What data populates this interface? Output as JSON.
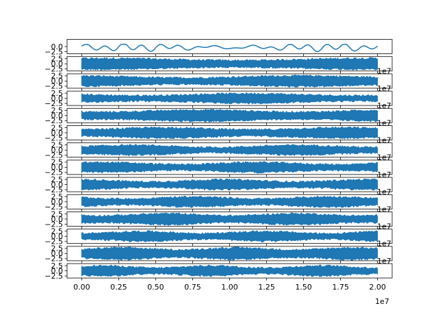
{
  "figure": {
    "line_color": "#1f77b4",
    "axis_color": "#000000",
    "background": "#ffffff"
  },
  "chart_data": {
    "type": "line",
    "layout": "stacked-subplots",
    "subplot_count": 14,
    "x_range": [
      0,
      20000000
    ],
    "x_tick_values": [
      0,
      2500000,
      5000000,
      7500000,
      10000000,
      12500000,
      15000000,
      17500000,
      20000000
    ],
    "x_tick_labels": [
      "0.00",
      "0.25",
      "0.50",
      "0.75",
      "1.00",
      "1.25",
      "1.50",
      "1.75",
      "2.00"
    ],
    "x_offset_label": "1e7",
    "y_tick_values": [
      2.5,
      0.0,
      -2.5
    ],
    "y_tick_labels": [
      "2.5",
      "0.0",
      "−2.5"
    ],
    "top_panel_y_tick_values": [
      0.0,
      -2.5
    ],
    "top_panel_y_tick_labels": [
      "0.0",
      "−2.5"
    ],
    "y_range": [
      -3.5,
      3.5
    ],
    "top_panel": {
      "description_kind": "smooth oscillating signal",
      "y_min": -2.5,
      "y_max": 1.0
    },
    "dense_panels": {
      "description_kind": "dense noise-like signal filling band",
      "y_min": -2.5,
      "y_max": 2.5
    },
    "clipped_offset_label": "1e7",
    "grid": false
  }
}
